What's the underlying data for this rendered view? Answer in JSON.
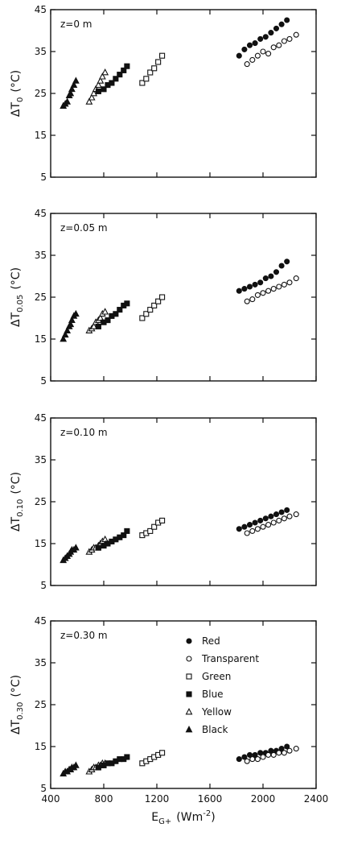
{
  "chart_data": [
    {
      "type": "scatter",
      "annotation": "z=0 m",
      "ylabel": "ΔT",
      "ylabel_sub": "0",
      "ylabel_unit": "(°C)",
      "xlim": [
        400,
        2400
      ],
      "ylim": [
        5,
        45
      ],
      "xticks": [
        400,
        800,
        1200,
        1600,
        2000,
        2400
      ],
      "yticks": [
        5,
        15,
        25,
        35,
        45
      ],
      "series": [
        {
          "marker": "triangle-filled",
          "x": [
            495,
            510,
            525,
            540,
            550,
            560,
            575,
            590
          ],
          "y": [
            22,
            22.5,
            23,
            24.5,
            25,
            26,
            27,
            28
          ]
        },
        {
          "marker": "triangle-open",
          "x": [
            690,
            710,
            725,
            740,
            760,
            775,
            790,
            810
          ],
          "y": [
            23,
            24,
            25,
            26,
            27,
            28,
            29,
            30
          ]
        },
        {
          "marker": "square-filled",
          "x": [
            760,
            800,
            830,
            860,
            890,
            920,
            950,
            975
          ],
          "y": [
            25.5,
            26,
            27,
            27.5,
            28.5,
            29.5,
            30.5,
            31.5
          ]
        },
        {
          "marker": "square-open",
          "x": [
            1090,
            1120,
            1150,
            1180,
            1210,
            1240
          ],
          "y": [
            27.5,
            28.5,
            30,
            31,
            32.5,
            34
          ]
        },
        {
          "marker": "circle-filled",
          "x": [
            1820,
            1860,
            1900,
            1940,
            1980,
            2020,
            2060,
            2100,
            2140,
            2180
          ],
          "y": [
            34,
            35.5,
            36.5,
            37,
            38,
            38.5,
            39.5,
            40.5,
            41.5,
            42.5
          ]
        },
        {
          "marker": "circle-open",
          "x": [
            1880,
            1920,
            1960,
            2000,
            2040,
            2080,
            2120,
            2160,
            2200,
            2250
          ],
          "y": [
            32,
            33,
            34,
            35,
            34.5,
            36,
            36.5,
            37.5,
            38,
            39
          ]
        }
      ]
    },
    {
      "type": "scatter",
      "annotation": "z=0.05 m",
      "ylabel": "ΔT",
      "ylabel_sub": "0.05",
      "ylabel_unit": "(°C)",
      "xlim": [
        400,
        2400
      ],
      "ylim": [
        5,
        45
      ],
      "xticks": [
        400,
        800,
        1200,
        1600,
        2000,
        2400
      ],
      "yticks": [
        5,
        15,
        25,
        35,
        45
      ],
      "series": [
        {
          "marker": "triangle-filled",
          "x": [
            495,
            510,
            525,
            540,
            550,
            560,
            575,
            590
          ],
          "y": [
            15,
            16,
            17,
            18,
            18.5,
            19.5,
            20.5,
            21
          ]
        },
        {
          "marker": "triangle-open",
          "x": [
            690,
            710,
            725,
            740,
            760,
            775,
            790,
            810
          ],
          "y": [
            17,
            17.5,
            18,
            19,
            19.5,
            20,
            21,
            21.5
          ]
        },
        {
          "marker": "square-filled",
          "x": [
            760,
            800,
            830,
            860,
            890,
            920,
            950,
            975
          ],
          "y": [
            18,
            19,
            19.5,
            20.5,
            21,
            22,
            23,
            23.5
          ]
        },
        {
          "marker": "square-open",
          "x": [
            1090,
            1120,
            1150,
            1180,
            1210,
            1240
          ],
          "y": [
            20,
            21,
            22,
            23,
            24,
            25
          ]
        },
        {
          "marker": "circle-filled",
          "x": [
            1820,
            1860,
            1900,
            1940,
            1980,
            2020,
            2060,
            2100,
            2140,
            2180
          ],
          "y": [
            26.5,
            27,
            27.5,
            28,
            28.5,
            29.5,
            30,
            31,
            32.5,
            33.5
          ]
        },
        {
          "marker": "circle-open",
          "x": [
            1880,
            1920,
            1960,
            2000,
            2040,
            2080,
            2120,
            2160,
            2200,
            2250
          ],
          "y": [
            24,
            24.5,
            25.5,
            26,
            26.5,
            27,
            27.5,
            28,
            28.5,
            29.5
          ]
        }
      ]
    },
    {
      "type": "scatter",
      "annotation": "z=0.10 m",
      "ylabel": "ΔT",
      "ylabel_sub": "0.10",
      "ylabel_unit": "(°C)",
      "xlim": [
        400,
        2400
      ],
      "ylim": [
        5,
        45
      ],
      "xticks": [
        400,
        800,
        1200,
        1600,
        2000,
        2400
      ],
      "yticks": [
        5,
        15,
        25,
        35,
        45
      ],
      "series": [
        {
          "marker": "triangle-filled",
          "x": [
            495,
            510,
            525,
            540,
            550,
            560,
            575,
            590
          ],
          "y": [
            11,
            11.5,
            12,
            12.5,
            13,
            13.5,
            13.5,
            14
          ]
        },
        {
          "marker": "triangle-open",
          "x": [
            690,
            710,
            725,
            740,
            760,
            775,
            790,
            810
          ],
          "y": [
            13,
            13.5,
            14,
            14,
            14.5,
            15,
            15.5,
            16
          ]
        },
        {
          "marker": "square-filled",
          "x": [
            760,
            800,
            830,
            860,
            890,
            920,
            950,
            975
          ],
          "y": [
            14,
            14.5,
            15,
            15.5,
            16,
            16.5,
            17,
            18
          ]
        },
        {
          "marker": "square-open",
          "x": [
            1090,
            1120,
            1150,
            1180,
            1210,
            1240
          ],
          "y": [
            17,
            17.5,
            18,
            19,
            20,
            20.5
          ]
        },
        {
          "marker": "circle-filled",
          "x": [
            1820,
            1860,
            1900,
            1940,
            1980,
            2020,
            2060,
            2100,
            2140,
            2180
          ],
          "y": [
            18.5,
            19,
            19.5,
            20,
            20.5,
            21,
            21.5,
            22,
            22.5,
            23
          ]
        },
        {
          "marker": "circle-open",
          "x": [
            1880,
            1920,
            1960,
            2000,
            2040,
            2080,
            2120,
            2160,
            2200,
            2250
          ],
          "y": [
            17.5,
            18,
            18.5,
            19,
            19.5,
            20,
            20.5,
            21,
            21.5,
            22
          ]
        }
      ]
    },
    {
      "type": "scatter",
      "annotation": "z=0.30 m",
      "ylabel": "ΔT",
      "ylabel_sub": "0.30",
      "ylabel_unit": "(°C)",
      "xlabel": "E",
      "xlabel_sub": "G+",
      "xlabel_unit": "(Wm",
      "xlabel_unit_sup": "-2",
      "xlabel_unit_end": ")",
      "xlim": [
        400,
        2400
      ],
      "ylim": [
        5,
        45
      ],
      "xticks": [
        400,
        800,
        1200,
        1600,
        2000,
        2400
      ],
      "yticks": [
        5,
        15,
        25,
        35,
        45
      ],
      "legend": {
        "placement": "top-right",
        "entries": [
          {
            "marker": "circle-filled",
            "label": "Red"
          },
          {
            "marker": "circle-open",
            "label": "Transparent"
          },
          {
            "marker": "square-open",
            "label": "Green"
          },
          {
            "marker": "square-filled",
            "label": "Blue"
          },
          {
            "marker": "triangle-open",
            "label": "Yellow"
          },
          {
            "marker": "triangle-filled",
            "label": "Black"
          }
        ]
      },
      "series": [
        {
          "marker": "triangle-filled",
          "x": [
            495,
            510,
            525,
            540,
            550,
            560,
            575,
            590
          ],
          "y": [
            8.5,
            9,
            9,
            9.5,
            9.5,
            10,
            10,
            10.5
          ]
        },
        {
          "marker": "triangle-open",
          "x": [
            690,
            710,
            725,
            740,
            760,
            775,
            790,
            810
          ],
          "y": [
            9,
            9.5,
            10,
            10,
            10.5,
            10.5,
            11,
            11
          ]
        },
        {
          "marker": "square-filled",
          "x": [
            760,
            800,
            830,
            860,
            890,
            920,
            950,
            975
          ],
          "y": [
            10,
            10.5,
            11,
            11,
            11.5,
            12,
            12,
            12.5
          ]
        },
        {
          "marker": "square-open",
          "x": [
            1090,
            1120,
            1150,
            1180,
            1210,
            1240
          ],
          "y": [
            11,
            11.5,
            12,
            12.5,
            13,
            13.5
          ]
        },
        {
          "marker": "circle-filled",
          "x": [
            1820,
            1860,
            1900,
            1940,
            1980,
            2020,
            2060,
            2100,
            2140,
            2180
          ],
          "y": [
            12,
            12.5,
            13,
            13,
            13.5,
            13.5,
            14,
            14,
            14.5,
            15
          ]
        },
        {
          "marker": "circle-open",
          "x": [
            1880,
            1920,
            1960,
            2000,
            2040,
            2080,
            2120,
            2160,
            2200,
            2250
          ],
          "y": [
            11.5,
            12,
            12,
            12.5,
            13,
            13,
            13.5,
            13.5,
            14,
            14.5
          ]
        }
      ]
    }
  ]
}
